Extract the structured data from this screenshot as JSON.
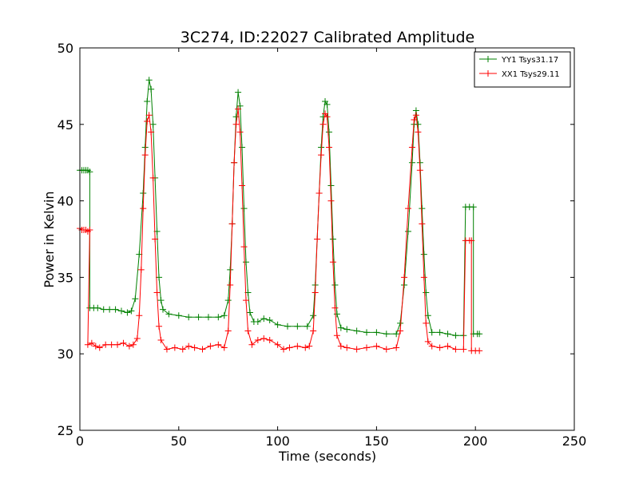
{
  "chart_data": {
    "type": "line",
    "title": "3C274, ID:22027 Calibrated Amplitude",
    "xlabel": "Time (seconds)",
    "ylabel": "Power in Kelvin",
    "xlim": [
      0,
      250
    ],
    "ylim": [
      25,
      50
    ],
    "xticks": [
      "0",
      "50",
      "100",
      "150",
      "200",
      "250"
    ],
    "yticks": [
      "25",
      "30",
      "35",
      "40",
      "45",
      "50"
    ],
    "grid": false,
    "legend_position": "top-right",
    "marker": "+",
    "series": [
      {
        "name": "YY1 Tsys31.17",
        "color": "#008000",
        "points": [
          [
            0,
            42.0
          ],
          [
            1,
            42.0
          ],
          [
            2,
            42.0
          ],
          [
            3,
            42.0
          ],
          [
            4,
            42.0
          ],
          [
            5,
            41.9
          ],
          [
            5,
            33.0
          ],
          [
            7,
            33.0
          ],
          [
            9,
            33.0
          ],
          [
            12,
            32.9
          ],
          [
            15,
            32.9
          ],
          [
            18,
            32.9
          ],
          [
            21,
            32.8
          ],
          [
            24,
            32.7
          ],
          [
            26,
            32.8
          ],
          [
            28,
            33.6
          ],
          [
            30,
            36.5
          ],
          [
            32,
            40.5
          ],
          [
            33,
            43.5
          ],
          [
            34,
            46.5
          ],
          [
            35,
            47.9
          ],
          [
            36,
            47.3
          ],
          [
            37,
            45.0
          ],
          [
            38,
            41.5
          ],
          [
            39,
            38.0
          ],
          [
            40,
            35.0
          ],
          [
            41,
            33.5
          ],
          [
            42,
            32.9
          ],
          [
            45,
            32.6
          ],
          [
            50,
            32.5
          ],
          [
            55,
            32.4
          ],
          [
            60,
            32.4
          ],
          [
            65,
            32.4
          ],
          [
            70,
            32.4
          ],
          [
            73,
            32.5
          ],
          [
            75,
            33.5
          ],
          [
            76,
            35.5
          ],
          [
            77,
            38.5
          ],
          [
            78,
            42.5
          ],
          [
            79,
            45.5
          ],
          [
            80,
            47.1
          ],
          [
            81,
            46.2
          ],
          [
            82,
            43.5
          ],
          [
            83,
            39.5
          ],
          [
            84,
            36.0
          ],
          [
            85,
            34.0
          ],
          [
            86,
            32.7
          ],
          [
            88,
            32.1
          ],
          [
            90,
            32.1
          ],
          [
            93,
            32.3
          ],
          [
            96,
            32.2
          ],
          [
            100,
            31.9
          ],
          [
            105,
            31.8
          ],
          [
            110,
            31.8
          ],
          [
            115,
            31.8
          ],
          [
            118,
            32.5
          ],
          [
            119,
            34.5
          ],
          [
            120,
            37.5
          ],
          [
            121,
            40.5
          ],
          [
            122,
            43.5
          ],
          [
            123,
            45.5
          ],
          [
            124,
            46.5
          ],
          [
            125,
            46.3
          ],
          [
            126,
            44.5
          ],
          [
            127,
            41.0
          ],
          [
            128,
            37.5
          ],
          [
            129,
            34.5
          ],
          [
            130,
            32.6
          ],
          [
            132,
            31.7
          ],
          [
            135,
            31.6
          ],
          [
            140,
            31.5
          ],
          [
            145,
            31.4
          ],
          [
            150,
            31.4
          ],
          [
            155,
            31.3
          ],
          [
            160,
            31.3
          ],
          [
            162,
            32.0
          ],
          [
            164,
            34.5
          ],
          [
            166,
            38.0
          ],
          [
            168,
            42.5
          ],
          [
            169,
            45.0
          ],
          [
            170,
            45.9
          ],
          [
            171,
            45.0
          ],
          [
            172,
            42.5
          ],
          [
            173,
            39.5
          ],
          [
            174,
            36.5
          ],
          [
            175,
            34.0
          ],
          [
            176,
            32.5
          ],
          [
            178,
            31.4
          ],
          [
            182,
            31.4
          ],
          [
            186,
            31.3
          ],
          [
            190,
            31.2
          ],
          [
            194,
            31.2
          ],
          [
            195,
            39.6
          ],
          [
            197,
            39.6
          ],
          [
            199,
            39.6
          ],
          [
            199,
            31.3
          ],
          [
            201,
            31.3
          ],
          [
            202,
            31.3
          ]
        ]
      },
      {
        "name": "XX1 Tsys29.11",
        "color": "#ff0000",
        "points": [
          [
            0,
            38.2
          ],
          [
            1,
            38.1
          ],
          [
            2,
            38.1
          ],
          [
            3,
            38.1
          ],
          [
            4,
            38.0
          ],
          [
            5,
            38.1
          ],
          [
            4,
            30.6
          ],
          [
            6,
            30.7
          ],
          [
            8,
            30.5
          ],
          [
            10,
            30.4
          ],
          [
            13,
            30.6
          ],
          [
            16,
            30.6
          ],
          [
            19,
            30.6
          ],
          [
            22,
            30.7
          ],
          [
            25,
            30.5
          ],
          [
            27,
            30.6
          ],
          [
            29,
            31.0
          ],
          [
            30,
            32.5
          ],
          [
            31,
            35.5
          ],
          [
            32,
            39.5
          ],
          [
            33,
            43.0
          ],
          [
            34,
            45.2
          ],
          [
            35,
            45.6
          ],
          [
            36,
            44.5
          ],
          [
            37,
            41.5
          ],
          [
            38,
            37.5
          ],
          [
            39,
            34.0
          ],
          [
            40,
            31.8
          ],
          [
            41,
            30.9
          ],
          [
            44,
            30.3
          ],
          [
            48,
            30.4
          ],
          [
            52,
            30.3
          ],
          [
            55,
            30.5
          ],
          [
            58,
            30.4
          ],
          [
            62,
            30.3
          ],
          [
            66,
            30.5
          ],
          [
            70,
            30.6
          ],
          [
            73,
            30.4
          ],
          [
            75,
            31.5
          ],
          [
            76,
            34.5
          ],
          [
            77,
            38.5
          ],
          [
            78,
            42.5
          ],
          [
            79,
            45.0
          ],
          [
            80,
            46.0
          ],
          [
            81,
            44.5
          ],
          [
            82,
            41.0
          ],
          [
            83,
            37.0
          ],
          [
            84,
            33.5
          ],
          [
            85,
            31.5
          ],
          [
            87,
            30.6
          ],
          [
            90,
            30.9
          ],
          [
            93,
            31.0
          ],
          [
            96,
            30.9
          ],
          [
            100,
            30.6
          ],
          [
            103,
            30.3
          ],
          [
            106,
            30.4
          ],
          [
            110,
            30.5
          ],
          [
            114,
            30.4
          ],
          [
            116,
            30.5
          ],
          [
            118,
            31.5
          ],
          [
            119,
            34.0
          ],
          [
            120,
            37.5
          ],
          [
            121,
            40.5
          ],
          [
            122,
            43.0
          ],
          [
            123,
            45.0
          ],
          [
            124,
            45.7
          ],
          [
            125,
            45.5
          ],
          [
            126,
            43.5
          ],
          [
            127,
            40.0
          ],
          [
            128,
            36.0
          ],
          [
            129,
            33.0
          ],
          [
            130,
            31.2
          ],
          [
            132,
            30.5
          ],
          [
            135,
            30.4
          ],
          [
            140,
            30.3
          ],
          [
            145,
            30.4
          ],
          [
            150,
            30.5
          ],
          [
            155,
            30.3
          ],
          [
            160,
            30.4
          ],
          [
            162,
            31.5
          ],
          [
            164,
            35.0
          ],
          [
            166,
            39.5
          ],
          [
            168,
            43.5
          ],
          [
            169,
            45.3
          ],
          [
            170,
            45.6
          ],
          [
            171,
            44.5
          ],
          [
            172,
            42.0
          ],
          [
            173,
            38.5
          ],
          [
            174,
            35.0
          ],
          [
            175,
            32.0
          ],
          [
            176,
            30.8
          ],
          [
            178,
            30.5
          ],
          [
            182,
            30.4
          ],
          [
            186,
            30.5
          ],
          [
            190,
            30.3
          ],
          [
            194,
            30.3
          ],
          [
            195,
            37.4
          ],
          [
            197,
            37.4
          ],
          [
            198,
            37.4
          ],
          [
            198,
            30.2
          ],
          [
            200,
            30.2
          ],
          [
            202,
            30.2
          ]
        ]
      }
    ]
  }
}
